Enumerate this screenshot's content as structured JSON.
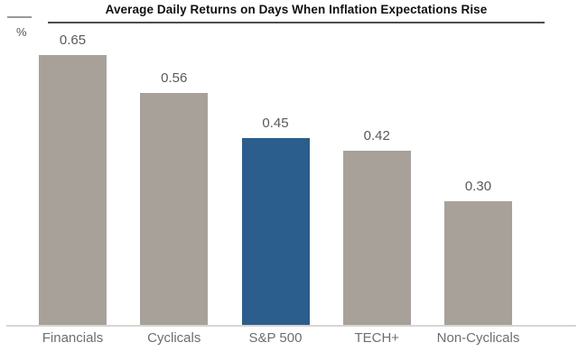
{
  "chart_data": {
    "type": "bar",
    "title": "Average Daily Returns on Days When Inflation Expectations Rise",
    "unit_label": "%",
    "categories": [
      "Financials",
      "Cyclicals",
      "S&P 500",
      "TECH+",
      "Non-Cyclicals"
    ],
    "values": [
      0.65,
      0.56,
      0.45,
      0.42,
      0.3
    ],
    "value_labels": [
      "0.65",
      "0.56",
      "0.45",
      "0.42",
      "0.30"
    ],
    "highlight_index": 2,
    "bar_color": "#a8a19a",
    "highlight_color": "#2b5e8c",
    "value_label_color": "#58595b",
    "category_label_color": "#6d6e71",
    "axis_line_color": "#d8d6d3",
    "ylabel": "",
    "xlabel": "",
    "ylim": [
      0,
      0.78
    ],
    "grid": false,
    "legend": "none"
  }
}
